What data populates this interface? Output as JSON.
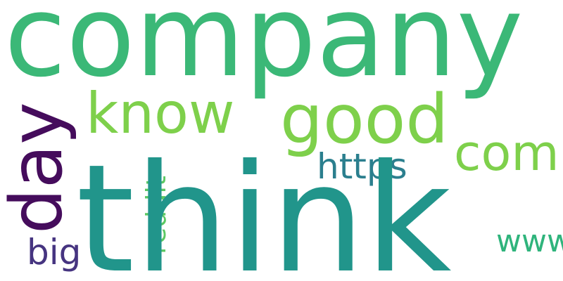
{
  "words": {
    "company": {
      "text": "company",
      "color": "#3bb877"
    },
    "think": {
      "text": "think",
      "color": "#21958b"
    },
    "know": {
      "text": "know",
      "color": "#7ed04b"
    },
    "good": {
      "text": "good",
      "color": "#7ed04b"
    },
    "com": {
      "text": "com",
      "color": "#7ed04b"
    },
    "day": {
      "text": "day",
      "color": "#450c5c"
    },
    "https": {
      "text": "https",
      "color": "#2b7f8e"
    },
    "reddit": {
      "text": "reddit",
      "color": "#5cc863"
    },
    "big": {
      "text": "big",
      "color": "#463480"
    },
    "www": {
      "text": "www",
      "color": "#2fb47c"
    }
  }
}
